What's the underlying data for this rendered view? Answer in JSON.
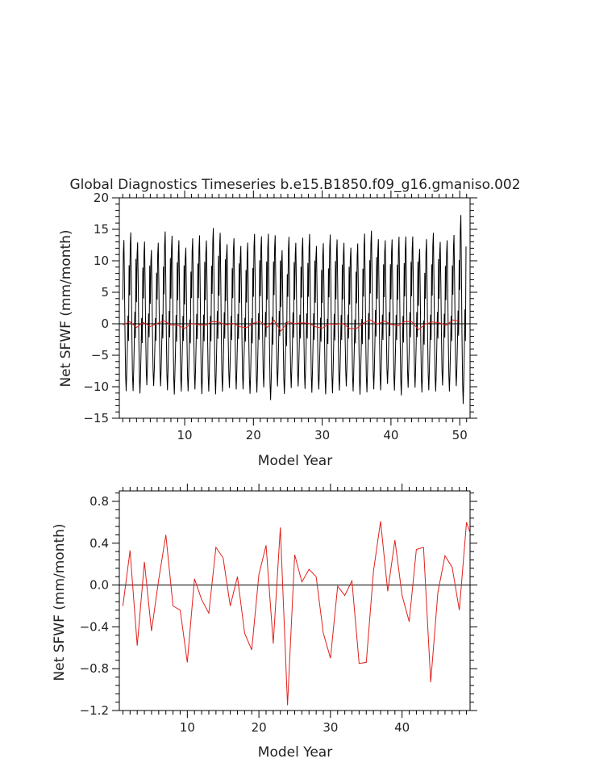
{
  "chart_data": [
    {
      "type": "line",
      "title": "Global Diagnostics Timeseries b.e15.B1850.f09_g16.gmaniso.002",
      "xlabel": "Model Year",
      "ylabel": "Net SFWF (mm/month)",
      "xlim": [
        0.5,
        51.5
      ],
      "ylim": [
        -15,
        20
      ],
      "xticks": [
        10,
        20,
        30,
        40,
        50
      ],
      "yticks": [
        -15,
        -10,
        -5,
        0,
        5,
        10,
        15,
        20
      ],
      "zero_line": true,
      "colors": {
        "monthly": "#000000",
        "annual": "#e0201b",
        "zero": "#000000"
      },
      "monthly_cycle": [
        4.0,
        11.5,
        13.5,
        6.5,
        -2.0,
        -8.0,
        -10.5,
        -7.5,
        -3.5,
        1.5,
        -2.5,
        9.5
      ],
      "year_amplitude_scale": [
        1.0,
        1.05,
        1.0,
        0.95,
        0.9,
        0.95,
        1.05,
        1.05,
        1.0,
        0.95,
        1.0,
        1.05,
        1.0,
        1.1,
        1.05,
        0.95,
        1.0,
        0.95,
        1.0,
        1.05,
        1.0,
        1.1,
        1.0,
        0.95,
        1.0,
        0.95,
        1.0,
        1.05,
        0.95,
        1.0,
        1.05,
        1.0,
        0.95,
        0.95,
        1.0,
        1.05,
        1.05,
        1.0,
        0.95,
        1.0,
        1.05,
        1.0,
        1.0,
        0.95,
        1.0,
        1.05,
        0.95,
        1.0,
        1.0,
        1.25
      ],
      "series": [
        {
          "name": "annual",
          "x": [
            1,
            2,
            3,
            4,
            5,
            6,
            7,
            8,
            9,
            10,
            11,
            12,
            13,
            14,
            15,
            16,
            17,
            18,
            19,
            20,
            21,
            22,
            23,
            24,
            25,
            26,
            27,
            28,
            29,
            30,
            31,
            32,
            33,
            34,
            35,
            36,
            37,
            38,
            39,
            40,
            41,
            42,
            43,
            44,
            45,
            46,
            47,
            48,
            49,
            50
          ],
          "y": [
            -0.2,
            0.33,
            -0.58,
            0.22,
            -0.44,
            0.05,
            0.48,
            -0.2,
            -0.24,
            -0.74,
            0.06,
            -0.14,
            -0.27,
            0.36,
            0.26,
            -0.2,
            0.08,
            -0.46,
            -0.62,
            0.1,
            0.38,
            -0.56,
            0.55,
            -1.15,
            0.29,
            0.03,
            0.15,
            0.08,
            -0.46,
            -0.7,
            -0.01,
            -0.1,
            0.04,
            -0.75,
            -0.74,
            0.13,
            0.61,
            -0.06,
            0.43,
            -0.1,
            -0.35,
            0.34,
            0.36,
            -0.93,
            -0.07,
            0.28,
            0.17,
            -0.24,
            0.6,
            0.4
          ]
        }
      ]
    },
    {
      "type": "line",
      "title": "",
      "xlabel": "Model Year",
      "ylabel": "Net SFWF (mm/month)",
      "xlim": [
        0.5,
        49.5
      ],
      "ylim": [
        -1.2,
        0.9
      ],
      "xticks": [
        10,
        20,
        30,
        40
      ],
      "yticks": [
        -1.2,
        -0.8,
        -0.4,
        0.0,
        0.4,
        0.8
      ],
      "ytick_labels": [
        "-1.2",
        "-0.8",
        "-0.4",
        "0.0",
        "0.4",
        "0.8"
      ],
      "zero_line": true,
      "colors": {
        "series": "#e0201b",
        "zero": "#000000"
      },
      "series": [
        {
          "name": "annual",
          "x": [
            1,
            2,
            3,
            4,
            5,
            6,
            7,
            8,
            9,
            10,
            11,
            12,
            13,
            14,
            15,
            16,
            17,
            18,
            19,
            20,
            21,
            22,
            23,
            24,
            25,
            26,
            27,
            28,
            29,
            30,
            31,
            32,
            33,
            34,
            35,
            36,
            37,
            38,
            39,
            40,
            41,
            42,
            43,
            44,
            45,
            46,
            47,
            48,
            49,
            50
          ],
          "y": [
            -0.2,
            0.33,
            -0.58,
            0.22,
            -0.44,
            0.05,
            0.48,
            -0.2,
            -0.24,
            -0.74,
            0.06,
            -0.14,
            -0.27,
            0.36,
            0.26,
            -0.2,
            0.08,
            -0.46,
            -0.62,
            0.1,
            0.38,
            -0.56,
            0.55,
            -1.15,
            0.29,
            0.03,
            0.15,
            0.08,
            -0.46,
            -0.7,
            -0.01,
            -0.1,
            0.04,
            -0.75,
            -0.74,
            0.13,
            0.61,
            -0.06,
            0.43,
            -0.1,
            -0.35,
            0.34,
            0.36,
            -0.93,
            -0.07,
            0.28,
            0.17,
            -0.24,
            0.6,
            0.4
          ]
        }
      ]
    }
  ]
}
